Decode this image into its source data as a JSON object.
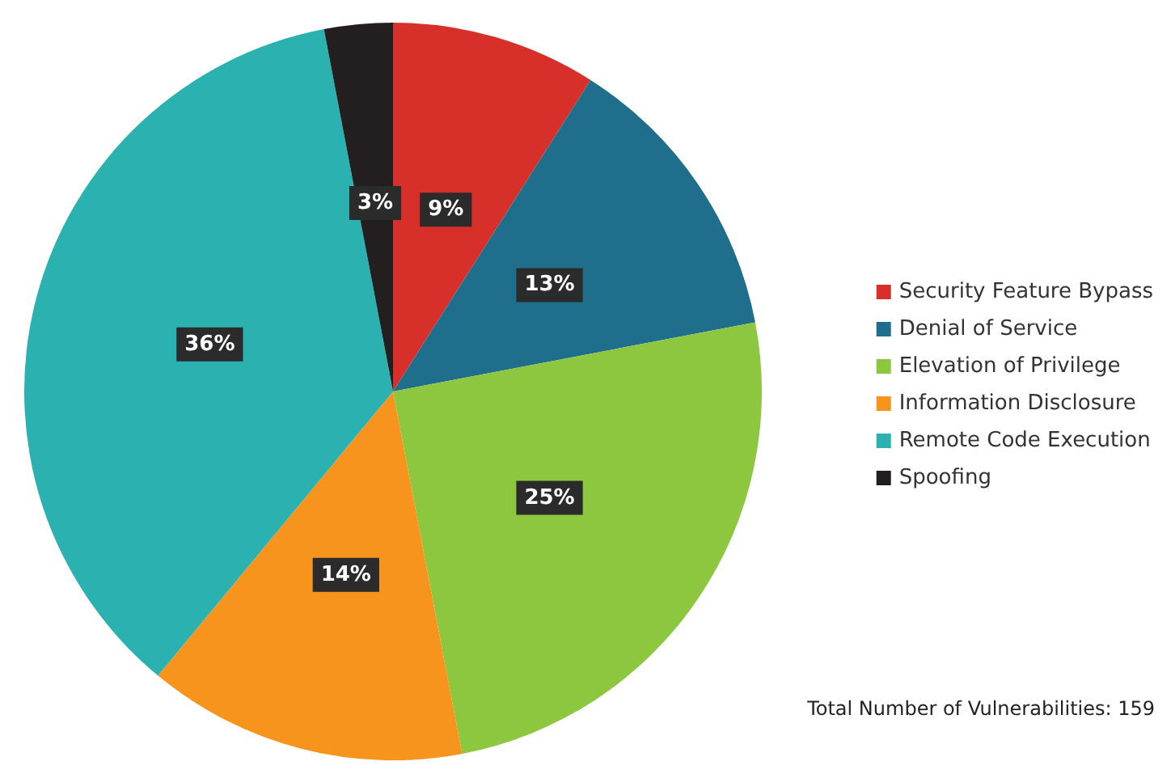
{
  "chart_data": {
    "type": "pie",
    "categories": [
      "Security Feature Bypass",
      "Denial of Service",
      "Elevation of Privilege",
      "Information Disclosure",
      "Remote Code Execution",
      "Spoofing"
    ],
    "values": [
      9,
      13,
      25,
      14,
      36,
      3
    ],
    "colors": [
      "#d7302a",
      "#1f6e8c",
      "#8dc63f",
      "#f7941d",
      "#2ab1b0",
      "#231f20"
    ],
    "value_labels": [
      "9%",
      "13%",
      "25%",
      "14%",
      "36%",
      "3%"
    ],
    "legend": "right",
    "annotations": [
      "Total Number of Vulnerabilities: 159"
    ]
  }
}
